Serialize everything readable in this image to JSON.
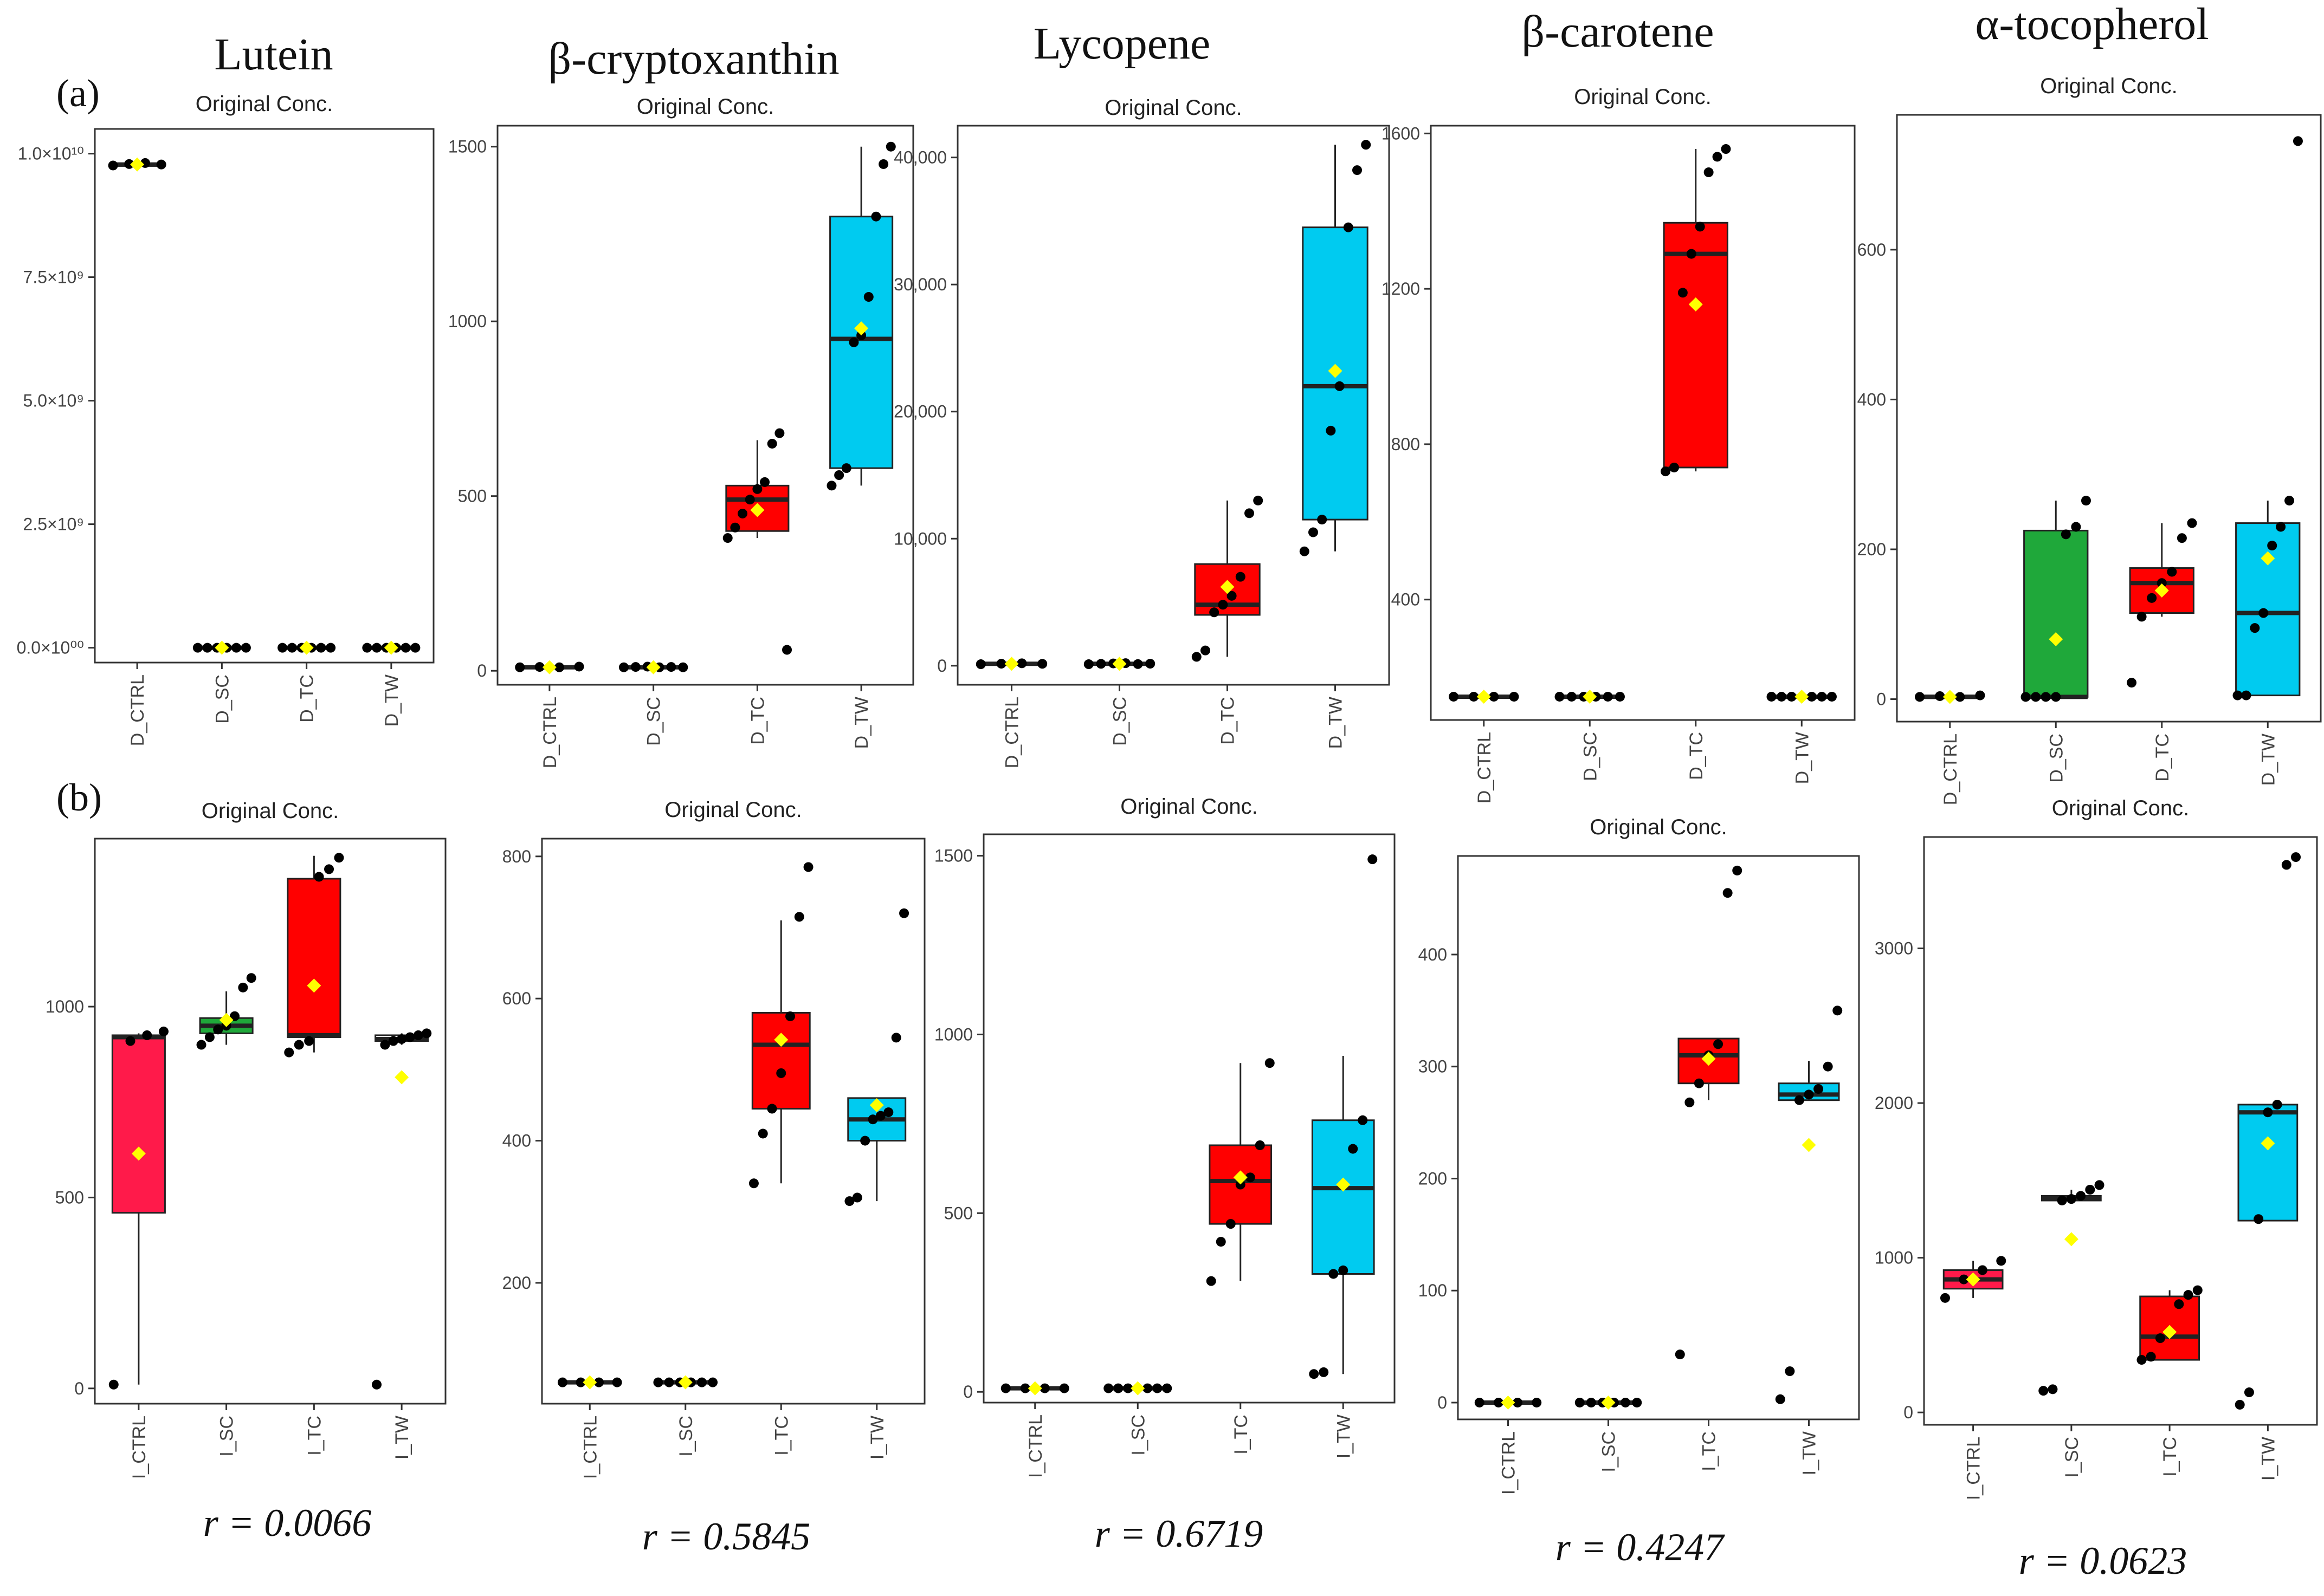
{
  "figure": {
    "row_labels": [
      "(a)",
      "(b)"
    ],
    "compounds": [
      "Lutein",
      "β-cryptoxanthin",
      "Lycopene",
      "β-carotene",
      "α-tocopherol"
    ],
    "correlations": [
      "r = 0.0066",
      "r = 0.5845",
      "r = 0.6719",
      "r = 0.4247",
      "r = 0.0623"
    ],
    "colors": {
      "CTRL": "#ff1a4a",
      "SC": "#1fa83a",
      "TC": "#ff0000",
      "TW": "#00cbf0",
      "mean_marker": "#ffff00",
      "point": "#000000"
    }
  },
  "chart_data": [
    {
      "type": "box",
      "title": "Original Conc.",
      "compound": "Lutein",
      "row": "a",
      "categories": [
        "D_CTRL",
        "D_SC",
        "D_TC",
        "D_TW"
      ],
      "groups": [
        "CTRL",
        "SC",
        "TC",
        "TW"
      ],
      "ylim": [
        -300000000,
        10500000000
      ],
      "yticks": [
        0,
        2500000000,
        5000000000,
        7500000000,
        10000000000
      ],
      "yticklabels": [
        "0.0×10⁰⁰",
        "2.5×10⁹",
        "5.0×10⁹",
        "7.5×10⁹",
        "1.0×10¹⁰"
      ],
      "boxes": [
        {
          "q1": 9750000000,
          "median": 9780000000,
          "q3": 9800000000,
          "wlo": 9750000000,
          "whi": 9820000000,
          "mean": 9780000000,
          "points": [
            9760000000,
            9790000000,
            9810000000,
            9780000000
          ],
          "fill": false
        },
        {
          "q1": 0,
          "median": 0,
          "q3": 0,
          "wlo": 0,
          "whi": 0,
          "mean": 0,
          "points": [
            0,
            0,
            0,
            0,
            0,
            0
          ],
          "fill": false
        },
        {
          "q1": 0,
          "median": 0,
          "q3": 0,
          "wlo": 0,
          "whi": 0,
          "mean": 0,
          "points": [
            0,
            0,
            0,
            0,
            0,
            0
          ],
          "fill": false
        },
        {
          "q1": 0,
          "median": 0,
          "q3": 0,
          "wlo": 0,
          "whi": 0,
          "mean": 0,
          "points": [
            0,
            0,
            0,
            0,
            0,
            0
          ],
          "fill": false
        }
      ]
    },
    {
      "type": "box",
      "title": "Original Conc.",
      "compound": "β-cryptoxanthin",
      "row": "a",
      "categories": [
        "D_CTRL",
        "D_SC",
        "D_TC",
        "D_TW"
      ],
      "groups": [
        "CTRL",
        "SC",
        "TC",
        "TW"
      ],
      "ylim": [
        -40,
        1560
      ],
      "yticks": [
        0,
        500,
        1000,
        1500
      ],
      "yticklabels": [
        "0",
        "500",
        "1000",
        "1500"
      ],
      "boxes": [
        {
          "q1": 10,
          "median": 10,
          "q3": 12,
          "wlo": 10,
          "whi": 12,
          "mean": 10,
          "points": [
            10,
            11,
            10,
            12
          ],
          "fill": false
        },
        {
          "q1": 10,
          "median": 10,
          "q3": 12,
          "wlo": 10,
          "whi": 12,
          "mean": 10,
          "points": [
            10,
            11,
            12,
            10,
            11,
            10
          ],
          "fill": false
        },
        {
          "q1": 400,
          "median": 490,
          "q3": 530,
          "wlo": 380,
          "whi": 660,
          "mean": 460,
          "points": [
            380,
            410,
            450,
            490,
            520,
            540,
            650,
            680,
            60
          ],
          "fill": true
        },
        {
          "q1": 580,
          "median": 950,
          "q3": 1300,
          "wlo": 530,
          "whi": 1500,
          "mean": 980,
          "points": [
            530,
            560,
            580,
            940,
            960,
            1070,
            1300,
            1450,
            1500
          ],
          "fill": true
        }
      ]
    },
    {
      "type": "box",
      "title": "Original Conc.",
      "compound": "Lycopene",
      "row": "a",
      "categories": [
        "D_CTRL",
        "D_SC",
        "D_TC",
        "D_TW"
      ],
      "groups": [
        "CTRL",
        "SC",
        "TC",
        "TW"
      ],
      "ylim": [
        -1500,
        42500
      ],
      "yticks": [
        0,
        10000,
        20000,
        30000,
        40000
      ],
      "yticklabels": [
        "0",
        "10,000",
        "20,000",
        "30,000",
        "40,000"
      ],
      "boxes": [
        {
          "q1": 100,
          "median": 150,
          "q3": 200,
          "wlo": 100,
          "whi": 200,
          "mean": 150,
          "points": [
            120,
            160,
            190,
            150
          ],
          "fill": false
        },
        {
          "q1": 100,
          "median": 150,
          "q3": 200,
          "wlo": 100,
          "whi": 200,
          "mean": 150,
          "points": [
            120,
            150,
            180,
            200,
            130,
            160
          ],
          "fill": false
        },
        {
          "q1": 4000,
          "median": 4800,
          "q3": 8000,
          "wlo": 700,
          "whi": 13000,
          "mean": 6200,
          "points": [
            700,
            1200,
            4200,
            4800,
            5500,
            7000,
            12000,
            13000
          ],
          "fill": true
        },
        {
          "q1": 11500,
          "median": 22000,
          "q3": 34500,
          "wlo": 9000,
          "whi": 41000,
          "mean": 23200,
          "points": [
            9000,
            10500,
            11500,
            18500,
            22000,
            34500,
            39000,
            41000
          ],
          "fill": true
        }
      ]
    },
    {
      "type": "box",
      "title": "Original Conc.",
      "compound": "β-carotene",
      "row": "a",
      "categories": [
        "D_CTRL",
        "D_SC",
        "D_TC",
        "D_TW"
      ],
      "groups": [
        "CTRL",
        "SC",
        "TC",
        "TW"
      ],
      "ylim": [
        90,
        1620
      ],
      "yticks": [
        400,
        800,
        1200,
        1600
      ],
      "yticklabels": [
        "400",
        "800",
        "1200",
        "1600"
      ],
      "boxes": [
        {
          "q1": 150,
          "median": 150,
          "q3": 150,
          "wlo": 150,
          "whi": 150,
          "mean": 150,
          "points": [
            150,
            150,
            150,
            150
          ],
          "fill": false
        },
        {
          "q1": 150,
          "median": 150,
          "q3": 150,
          "wlo": 150,
          "whi": 150,
          "mean": 150,
          "points": [
            150,
            150,
            150,
            150,
            150,
            150
          ],
          "fill": false
        },
        {
          "q1": 740,
          "median": 1290,
          "q3": 1370,
          "wlo": 730,
          "whi": 1560,
          "mean": 1160,
          "points": [
            730,
            740,
            1190,
            1290,
            1360,
            1500,
            1540,
            1560
          ],
          "fill": true
        },
        {
          "q1": 150,
          "median": 150,
          "q3": 150,
          "wlo": 150,
          "whi": 150,
          "mean": 150,
          "points": [
            150,
            150,
            150,
            150,
            150,
            150,
            150
          ],
          "fill": false
        }
      ]
    },
    {
      "type": "box",
      "title": "Original Conc.",
      "compound": "α-tocopherol",
      "row": "a",
      "categories": [
        "D_CTRL",
        "D_SC",
        "D_TC",
        "D_TW"
      ],
      "groups": [
        "CTRL",
        "SC",
        "TC",
        "TW"
      ],
      "ylim": [
        -30,
        780
      ],
      "yticks": [
        0,
        200,
        400,
        600
      ],
      "yticklabels": [
        "0",
        "200",
        "400",
        "600"
      ],
      "boxes": [
        {
          "q1": 3,
          "median": 3,
          "q3": 5,
          "wlo": 3,
          "whi": 5,
          "mean": 3,
          "points": [
            3,
            4,
            3,
            5
          ],
          "fill": false
        },
        {
          "q1": 3,
          "median": 3,
          "q3": 225,
          "wlo": 3,
          "whi": 265,
          "mean": 80,
          "points": [
            3,
            3,
            3,
            3,
            220,
            230,
            265
          ],
          "fill": true
        },
        {
          "q1": 115,
          "median": 155,
          "q3": 175,
          "wlo": 110,
          "whi": 235,
          "mean": 145,
          "points": [
            22,
            110,
            135,
            155,
            170,
            215,
            235
          ],
          "fill": true
        },
        {
          "q1": 5,
          "median": 115,
          "q3": 235,
          "wlo": 5,
          "whi": 265,
          "mean": 188,
          "points": [
            5,
            5,
            95,
            115,
            205,
            230,
            265,
            745
          ],
          "fill": true
        }
      ]
    },
    {
      "type": "box",
      "title": "Original Conc.",
      "compound": "Lutein",
      "row": "b",
      "categories": [
        "I_CTRL",
        "I_SC",
        "I_TC",
        "I_TW"
      ],
      "groups": [
        "CTRL",
        "SC",
        "TC",
        "TW"
      ],
      "ylim": [
        -40,
        1440
      ],
      "yticks": [
        0,
        500,
        1000
      ],
      "yticklabels": [
        "0",
        "500",
        "1000"
      ],
      "boxes": [
        {
          "q1": 460,
          "median": 920,
          "q3": 925,
          "wlo": 10,
          "whi": 930,
          "mean": 615,
          "points": [
            10,
            910,
            925,
            935
          ],
          "fill": true
        },
        {
          "q1": 930,
          "median": 950,
          "q3": 970,
          "wlo": 900,
          "whi": 1040,
          "mean": 965,
          "points": [
            900,
            920,
            940,
            950,
            975,
            1050,
            1075
          ],
          "fill": true
        },
        {
          "q1": 920,
          "median": 925,
          "q3": 1335,
          "wlo": 880,
          "whi": 1395,
          "mean": 1055,
          "points": [
            880,
            900,
            910,
            1340,
            1360,
            1390
          ],
          "fill": true
        },
        {
          "q1": 910,
          "median": 915,
          "q3": 925,
          "wlo": 900,
          "whi": 930,
          "mean": 815,
          "points": [
            10,
            900,
            910,
            915,
            920,
            925,
            930
          ],
          "fill": false
        }
      ]
    },
    {
      "type": "box",
      "title": "Original Conc.",
      "compound": "β-cryptoxanthin",
      "row": "b",
      "categories": [
        "I_CTRL",
        "I_SC",
        "I_TC",
        "I_TW"
      ],
      "groups": [
        "CTRL",
        "SC",
        "TC",
        "TW"
      ],
      "ylim": [
        30,
        825
      ],
      "yticks": [
        200,
        400,
        600,
        800
      ],
      "yticklabels": [
        "200",
        "400",
        "600",
        "800"
      ],
      "boxes": [
        {
          "q1": 60,
          "median": 60,
          "q3": 60,
          "wlo": 60,
          "whi": 60,
          "mean": 60,
          "points": [
            60,
            60,
            60,
            60
          ],
          "fill": false
        },
        {
          "q1": 60,
          "median": 60,
          "q3": 60,
          "wlo": 60,
          "whi": 60,
          "mean": 60,
          "points": [
            60,
            60,
            60,
            60,
            60,
            60
          ],
          "fill": false
        },
        {
          "q1": 445,
          "median": 535,
          "q3": 580,
          "wlo": 340,
          "whi": 710,
          "mean": 542,
          "points": [
            340,
            410,
            445,
            495,
            575,
            715,
            785
          ],
          "fill": true
        },
        {
          "q1": 400,
          "median": 430,
          "q3": 460,
          "wlo": 315,
          "whi": 460,
          "mean": 450,
          "points": [
            315,
            320,
            400,
            430,
            435,
            440,
            545,
            720
          ],
          "fill": true
        }
      ]
    },
    {
      "type": "box",
      "title": "Original Conc.",
      "compound": "Lycopene",
      "row": "b",
      "categories": [
        "I_CTRL",
        "I_SC",
        "I_TC",
        "I_TW"
      ],
      "groups": [
        "CTRL",
        "SC",
        "TC",
        "TW"
      ],
      "ylim": [
        -30,
        1560
      ],
      "yticks": [
        0,
        500,
        1000,
        1500
      ],
      "yticklabels": [
        "0",
        "500",
        "1000",
        "1500"
      ],
      "boxes": [
        {
          "q1": 10,
          "median": 10,
          "q3": 10,
          "wlo": 10,
          "whi": 10,
          "mean": 10,
          "points": [
            10,
            10,
            10,
            10
          ],
          "fill": false
        },
        {
          "q1": 10,
          "median": 10,
          "q3": 10,
          "wlo": 10,
          "whi": 10,
          "mean": 10,
          "points": [
            10,
            10,
            10,
            10,
            10,
            10,
            10
          ],
          "fill": false
        },
        {
          "q1": 470,
          "median": 590,
          "q3": 690,
          "wlo": 310,
          "whi": 920,
          "mean": 600,
          "points": [
            310,
            420,
            470,
            580,
            600,
            690,
            920
          ],
          "fill": true
        },
        {
          "q1": 330,
          "median": 570,
          "q3": 760,
          "wlo": 50,
          "whi": 940,
          "mean": 580,
          "points": [
            50,
            55,
            330,
            340,
            680,
            760,
            1490
          ],
          "fill": true
        }
      ]
    },
    {
      "type": "box",
      "title": "Original Conc.",
      "compound": "β-carotene",
      "row": "b",
      "categories": [
        "I_CTRL",
        "I_SC",
        "I_TC",
        "I_TW"
      ],
      "groups": [
        "CTRL",
        "SC",
        "TC",
        "TW"
      ],
      "ylim": [
        -15,
        488
      ],
      "yticks": [
        0,
        100,
        200,
        300,
        400
      ],
      "yticklabels": [
        "0",
        "100",
        "200",
        "300",
        "400"
      ],
      "boxes": [
        {
          "q1": 0,
          "median": 0,
          "q3": 0,
          "wlo": 0,
          "whi": 0,
          "mean": 0,
          "points": [
            0,
            0,
            0,
            0
          ],
          "fill": false
        },
        {
          "q1": 0,
          "median": 0,
          "q3": 0,
          "wlo": 0,
          "whi": 0,
          "mean": 0,
          "points": [
            0,
            0,
            0,
            0,
            0,
            0
          ],
          "fill": false
        },
        {
          "q1": 285,
          "median": 310,
          "q3": 325,
          "wlo": 270,
          "whi": 325,
          "mean": 307,
          "points": [
            43,
            268,
            285,
            310,
            320,
            455,
            475
          ],
          "fill": true
        },
        {
          "q1": 270,
          "median": 275,
          "q3": 285,
          "wlo": 270,
          "whi": 305,
          "mean": 230,
          "points": [
            3,
            28,
            270,
            275,
            280,
            300,
            350
          ],
          "fill": true
        }
      ]
    },
    {
      "type": "box",
      "title": "Original Conc.",
      "compound": "α-tocopherol",
      "row": "b",
      "categories": [
        "I_CTRL",
        "I_SC",
        "I_TC",
        "I_TW"
      ],
      "groups": [
        "CTRL",
        "SC",
        "TC",
        "TW"
      ],
      "ylim": [
        -80,
        3720
      ],
      "yticks": [
        0,
        1000,
        2000,
        3000
      ],
      "yticklabels": [
        "0",
        "1000",
        "2000",
        "3000"
      ],
      "boxes": [
        {
          "q1": 800,
          "median": 860,
          "q3": 920,
          "wlo": 740,
          "whi": 980,
          "mean": 860,
          "points": [
            740,
            860,
            920,
            980
          ],
          "fill": true
        },
        {
          "q1": 1370,
          "median": 1385,
          "q3": 1400,
          "wlo": 1360,
          "whi": 1440,
          "mean": 1120,
          "points": [
            140,
            150,
            1370,
            1380,
            1400,
            1440,
            1470
          ],
          "fill": false
        },
        {
          "q1": 340,
          "median": 490,
          "q3": 750,
          "wlo": 340,
          "whi": 790,
          "mean": 520,
          "points": [
            340,
            360,
            480,
            520,
            700,
            760,
            790
          ],
          "fill": true
        },
        {
          "q1": 1240,
          "median": 1940,
          "q3": 1990,
          "wlo": 1240,
          "whi": 1990,
          "mean": 1740,
          "points": [
            50,
            130,
            1250,
            1940,
            1990,
            3540,
            3590
          ],
          "fill": true
        }
      ]
    }
  ]
}
